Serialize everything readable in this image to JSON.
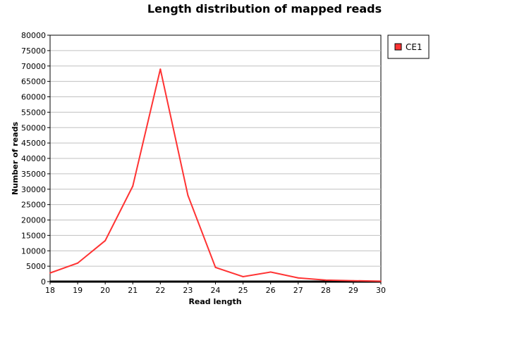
{
  "chart_data": {
    "type": "line",
    "title": "Length distribution of mapped reads",
    "xlabel": "Read length",
    "ylabel": "Number of reads",
    "x": [
      18,
      19,
      20,
      21,
      22,
      23,
      24,
      25,
      26,
      27,
      28,
      29,
      30
    ],
    "xlim": [
      18,
      30
    ],
    "ylim": [
      0,
      80000
    ],
    "ytick_step": 5000,
    "grid": true,
    "legend_position": "right",
    "series": [
      {
        "name": "CE1",
        "color": "#ff3333",
        "values": [
          2800,
          6000,
          13300,
          31000,
          69000,
          28000,
          4600,
          1600,
          3100,
          1200,
          500,
          300,
          150
        ]
      }
    ]
  }
}
